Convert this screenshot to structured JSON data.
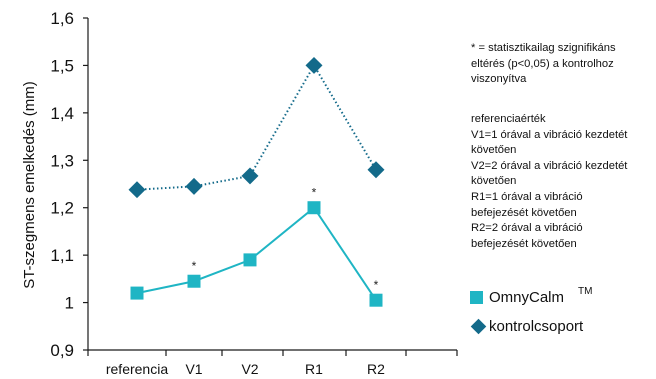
{
  "chart_data": {
    "type": "line",
    "categories": [
      "referencia",
      "V1",
      "V2",
      "R1",
      "R2"
    ],
    "ylabel": "ST-szegmens emelkedés (mm)",
    "ylim": [
      0.9,
      1.6
    ],
    "yticks": [
      "0,9",
      "1",
      "1,1",
      "1,2",
      "1,3",
      "1,4",
      "1,5",
      "1,6"
    ],
    "series": [
      {
        "name": "OmnyCalm",
        "name_suffix": "TM",
        "marker": "square",
        "line_style": "solid",
        "color": "#1fb5c4",
        "values": [
          1.02,
          1.045,
          1.09,
          1.2,
          1.005
        ],
        "significance": [
          "",
          "*",
          "",
          "*",
          "*"
        ]
      },
      {
        "name": "kontrolcsoport",
        "marker": "diamond",
        "line_style": "dotted",
        "color": "#136a8a",
        "values": [
          1.238,
          1.245,
          1.267,
          1.5,
          1.28
        ]
      }
    ],
    "grid": false,
    "legend_position": "bottom-right"
  },
  "notes": {
    "significance_lines": [
      "* =  statisztikailag szignifikáns",
      "eltérés (p<0,05) a kontrolhoz",
      "viszonyítva"
    ],
    "reference_lines": [
      "referenciaérték",
      "V1=1 órával a vibráció kezdetét",
      "követően",
      "V2=2 órával a vibráció kezdetét",
      "követően",
      "R1=1 órával a vibráció",
      "befejezését követően",
      "R2=2 órával a vibráció",
      "befejezését követően"
    ]
  }
}
